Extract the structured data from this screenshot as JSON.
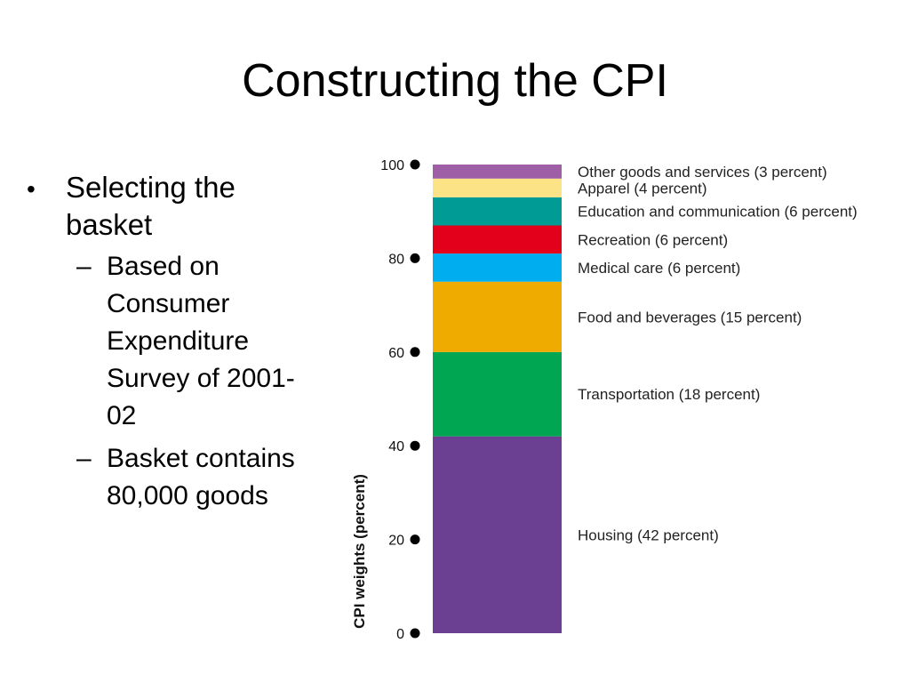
{
  "slide": {
    "title": "Constructing the CPI",
    "bullets": {
      "main": "Selecting the basket",
      "sub": [
        "Based on Consumer Expenditure Survey of 2001-02",
        "Basket contains 80,000 goods"
      ]
    }
  },
  "chart_data": {
    "type": "bar",
    "stacked": true,
    "ylabel": "CPI weights (percent)",
    "ylim": [
      0,
      100
    ],
    "yticks": [
      0,
      20,
      40,
      60,
      80,
      100
    ],
    "segments": [
      {
        "name": "Housing",
        "label": "Housing (42 percent)",
        "value": 42,
        "color": "#6b3f91"
      },
      {
        "name": "Transportation",
        "label": "Transportation (18 percent)",
        "value": 18,
        "color": "#00a651"
      },
      {
        "name": "Food and beverages",
        "label": "Food and beverages (15 percent)",
        "value": 15,
        "color": "#f0ab00"
      },
      {
        "name": "Medical care",
        "label": "Medical care (6 percent)",
        "value": 6,
        "color": "#00aeef"
      },
      {
        "name": "Recreation",
        "label": "Recreation (6 percent)",
        "value": 6,
        "color": "#e2001a"
      },
      {
        "name": "Education and communication",
        "label": "Education and communication (6 percent)",
        "value": 6,
        "color": "#009b95"
      },
      {
        "name": "Apparel",
        "label": "Apparel (4 percent)",
        "value": 4,
        "color": "#fce486"
      },
      {
        "name": "Other goods and services",
        "label": "Other goods and services (3 percent)",
        "value": 3,
        "color": "#9e5fa6"
      }
    ]
  }
}
